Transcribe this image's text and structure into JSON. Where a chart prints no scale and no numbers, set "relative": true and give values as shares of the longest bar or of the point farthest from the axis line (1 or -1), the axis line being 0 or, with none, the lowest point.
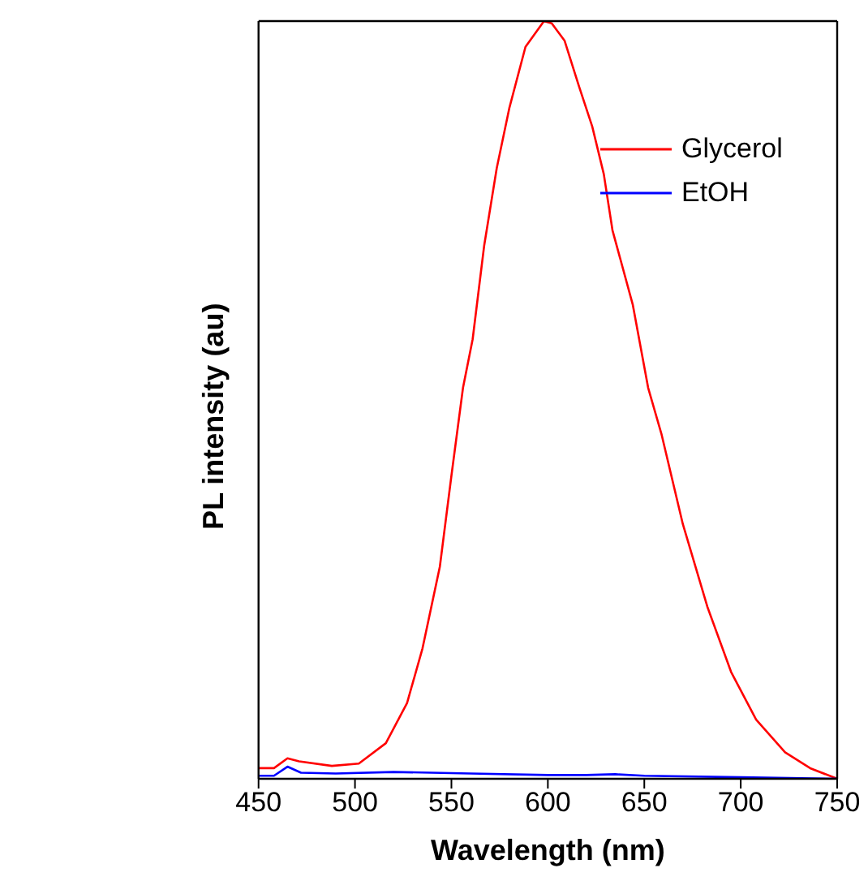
{
  "chart_data": {
    "type": "line",
    "relative": true,
    "xlabel": "Wavelength (nm)",
    "ylabel": "PL intensity (au)",
    "xlim": [
      450,
      750
    ],
    "xticks": [
      450,
      500,
      550,
      600,
      650,
      700,
      750
    ],
    "tick_labels": "x",
    "legend": "top right",
    "marker": "none",
    "line_style": "solid",
    "series": [
      {
        "name": "Glycerol",
        "color": "#ff0000",
        "x": [
          450,
          458,
          465,
          471,
          488,
          502,
          516,
          527,
          535,
          544,
          550,
          556,
          561,
          567,
          573.5,
          580,
          588.4,
          598,
          602,
          608.7,
          616,
          623,
          629,
          633.5,
          644,
          652,
          659,
          670,
          682.7,
          695,
          708,
          723,
          736,
          750
        ],
        "values": [
          0.014,
          0.014,
          0.027,
          0.023,
          0.017,
          0.02,
          0.047,
          0.1,
          0.172,
          0.28,
          0.4,
          0.516,
          0.58,
          0.704,
          0.806,
          0.885,
          0.966,
          1,
          0.997,
          0.974,
          0.915,
          0.861,
          0.798,
          0.724,
          0.626,
          0.516,
          0.454,
          0.336,
          0.227,
          0.141,
          0.078,
          0.035,
          0.014,
          0
        ]
      },
      {
        "name": "EtOH",
        "color": "#0000ff",
        "x": [
          450,
          458,
          465,
          472,
          490,
          520,
          560,
          600,
          620,
          635,
          650,
          700,
          750
        ],
        "values": [
          0.004,
          0.004,
          0.016,
          0.008,
          0.007,
          0.009,
          0.007,
          0.005,
          0.005,
          0.006,
          0.004,
          0.002,
          0
        ]
      }
    ]
  }
}
